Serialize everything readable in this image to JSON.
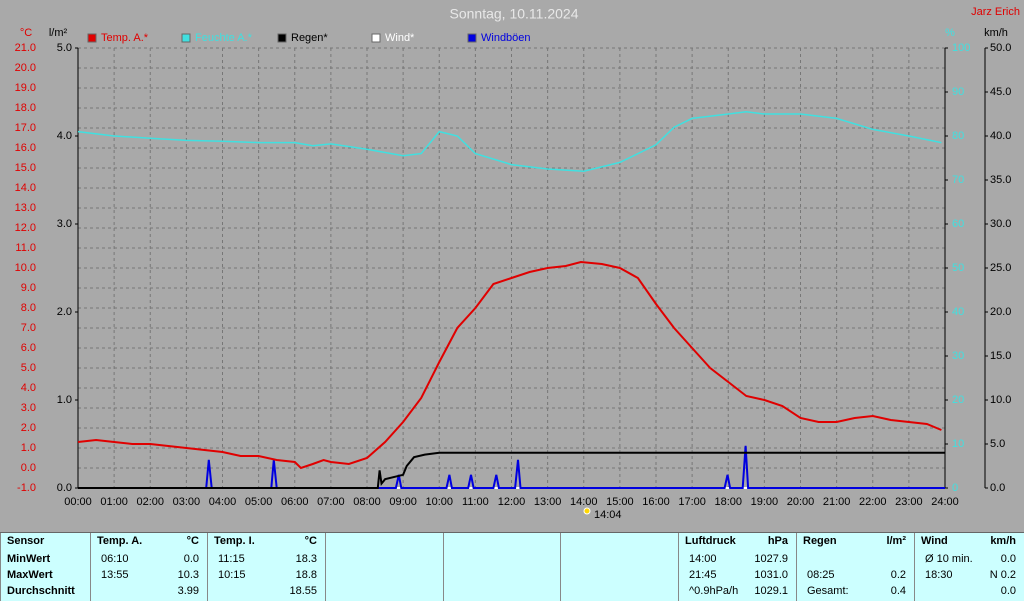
{
  "chart_data": {
    "type": "line",
    "title": "Sonntag, 10.11.2024",
    "author": "Jarz Erich",
    "sun_marker": "14:04",
    "xlim": [
      0,
      24
    ],
    "xticks": [
      {
        "value": 0,
        "label": "00:00"
      },
      {
        "value": 1,
        "label": "01:00"
      },
      {
        "value": 2,
        "label": "02:00"
      },
      {
        "value": 3,
        "label": "03:00"
      },
      {
        "value": 4,
        "label": "04:00"
      },
      {
        "value": 5,
        "label": "05:00"
      },
      {
        "value": 6,
        "label": "06:00"
      },
      {
        "value": 7,
        "label": "07:00"
      },
      {
        "value": 8,
        "label": "08:00"
      },
      {
        "value": 9,
        "label": "09:00"
      },
      {
        "value": 10,
        "label": "10:00"
      },
      {
        "value": 11,
        "label": "11:00"
      },
      {
        "value": 12,
        "label": "12:00"
      },
      {
        "value": 13,
        "label": "13:00"
      },
      {
        "value": 14,
        "label": "14:00"
      },
      {
        "value": 15,
        "label": "15:00"
      },
      {
        "value": 16,
        "label": "16:00"
      },
      {
        "value": 17,
        "label": "17:00"
      },
      {
        "value": 18,
        "label": "18:00"
      },
      {
        "value": 19,
        "label": "19:00"
      },
      {
        "value": 20,
        "label": "20:00"
      },
      {
        "value": 21,
        "label": "21:00"
      },
      {
        "value": 22,
        "label": "22:00"
      },
      {
        "value": 23,
        "label": "23:00"
      },
      {
        "value": 24,
        "label": "24:00"
      }
    ],
    "y_label": "°C",
    "ylim": [
      -1,
      21
    ],
    "yticks": [
      {
        "value": -1,
        "label": "-1.0"
      },
      {
        "value": 0,
        "label": "0.0"
      },
      {
        "value": 1,
        "label": "1.0"
      },
      {
        "value": 2,
        "label": "2.0"
      },
      {
        "value": 3,
        "label": "3.0"
      },
      {
        "value": 4,
        "label": "4.0"
      },
      {
        "value": 5,
        "label": "5.0"
      },
      {
        "value": 6,
        "label": "6.0"
      },
      {
        "value": 7,
        "label": "7.0"
      },
      {
        "value": 8,
        "label": "8.0"
      },
      {
        "value": 9,
        "label": "9.0"
      },
      {
        "value": 10,
        "label": "10.0"
      },
      {
        "value": 11,
        "label": "11.0"
      },
      {
        "value": 12,
        "label": "12.0"
      },
      {
        "value": 13,
        "label": "13.0"
      },
      {
        "value": 14,
        "label": "14.0"
      },
      {
        "value": 15,
        "label": "15.0"
      },
      {
        "value": 16,
        "label": "16.0"
      },
      {
        "value": 17,
        "label": "17.0"
      },
      {
        "value": 18,
        "label": "18.0"
      },
      {
        "value": 19,
        "label": "19.0"
      },
      {
        "value": 20,
        "label": "20.0"
      },
      {
        "value": 21,
        "label": "21.0"
      }
    ],
    "y2_label": "l/m²",
    "y2lim": [
      0,
      5
    ],
    "y2ticks": [
      {
        "value": 0,
        "label": "0.0"
      },
      {
        "value": 1,
        "label": "1.0"
      },
      {
        "value": 2,
        "label": "2.0"
      },
      {
        "value": 3,
        "label": "3.0"
      },
      {
        "value": 4,
        "label": "4.0"
      },
      {
        "value": 5,
        "label": "5.0"
      }
    ],
    "y3_label": "%",
    "y3lim": [
      0,
      100
    ],
    "y3ticks": [
      0,
      10,
      20,
      30,
      40,
      50,
      60,
      70,
      80,
      90,
      100
    ],
    "y4_label": "km/h",
    "y4lim": [
      0,
      50
    ],
    "y4ticks": [
      {
        "value": 0,
        "label": "0.0"
      },
      {
        "value": 5,
        "label": "5.0"
      },
      {
        "value": 10,
        "label": "10.0"
      },
      {
        "value": 15,
        "label": "15.0"
      },
      {
        "value": 20,
        "label": "20.0"
      },
      {
        "value": 25,
        "label": "25.0"
      },
      {
        "value": 30,
        "label": "30.0"
      },
      {
        "value": 35,
        "label": "35.0"
      },
      {
        "value": 40,
        "label": "40.0"
      },
      {
        "value": 45,
        "label": "45.0"
      },
      {
        "value": 50,
        "label": "50.0"
      }
    ],
    "grid": true,
    "series": [
      {
        "name": "Temp. A.*",
        "color": "#e00000",
        "axis": "y",
        "x": [
          0,
          0.5,
          1,
          1.5,
          2,
          2.5,
          3,
          3.5,
          4,
          4.5,
          5,
          5.5,
          6,
          6.17,
          6.5,
          6.8,
          7,
          7.5,
          8,
          8.5,
          9,
          9.5,
          10,
          10.5,
          11,
          11.5,
          12,
          12.5,
          13,
          13.5,
          13.92,
          14.5,
          15,
          15.5,
          16,
          16.5,
          17,
          17.5,
          18,
          18.5,
          19,
          19.5,
          20,
          20.5,
          21,
          21.5,
          22,
          22.5,
          23,
          23.5,
          23.9
        ],
        "values": [
          1.3,
          1.4,
          1.3,
          1.2,
          1.2,
          1.1,
          1.0,
          0.9,
          0.8,
          0.6,
          0.6,
          0.4,
          0.3,
          0.0,
          0.2,
          0.4,
          0.3,
          0.2,
          0.5,
          1.3,
          2.3,
          3.5,
          5.3,
          7.0,
          8.0,
          9.2,
          9.5,
          9.8,
          10.0,
          10.1,
          10.3,
          10.2,
          10.0,
          9.5,
          8.2,
          7.0,
          6.0,
          5.0,
          4.3,
          3.6,
          3.4,
          3.1,
          2.5,
          2.3,
          2.3,
          2.5,
          2.6,
          2.4,
          2.3,
          2.2,
          1.9
        ]
      },
      {
        "name": "Feuchte A.*",
        "color": "#40e0e0",
        "axis": "y3",
        "x": [
          0,
          1,
          2,
          3,
          4,
          5,
          6,
          6.5,
          7,
          8,
          9,
          9.5,
          10,
          10.5,
          11,
          12,
          13,
          14,
          15,
          16,
          16.5,
          17,
          18,
          18.5,
          19,
          20,
          21,
          22,
          23,
          23.9
        ],
        "values": [
          81,
          80,
          79.5,
          79,
          78.8,
          78.5,
          78.5,
          77.8,
          78.2,
          77,
          75.5,
          76,
          81,
          80,
          76,
          73.5,
          72.5,
          72,
          74,
          78,
          82,
          84,
          85,
          85.5,
          85,
          85,
          84,
          81.5,
          80,
          78.5
        ]
      },
      {
        "name": "Regen*",
        "color": "#000000",
        "axis": "y2",
        "x": [
          0,
          8.3,
          8.35,
          8.4,
          8.5,
          9.0,
          9.05,
          9.1,
          9.3,
          9.6,
          10,
          24
        ],
        "values": [
          0,
          0,
          0.2,
          0.05,
          0.1,
          0.15,
          0.2,
          0.25,
          0.35,
          0.38,
          0.4,
          0.4
        ]
      },
      {
        "name": "Wind*",
        "color": "#ffffff",
        "axis": "y4",
        "x": [
          0,
          24
        ],
        "values": [
          0,
          0
        ]
      },
      {
        "name": "Windböen",
        "color": "#0000e0",
        "axis": "y4",
        "x": [
          0,
          3.55,
          3.62,
          3.7,
          5.35,
          5.42,
          5.5,
          8.8,
          8.88,
          8.95,
          10.2,
          10.28,
          10.35,
          10.8,
          10.88,
          10.95,
          11.5,
          11.58,
          11.65,
          12.1,
          12.18,
          12.25,
          17.9,
          17.98,
          18.05,
          18.4,
          18.48,
          18.55,
          24
        ],
        "values": [
          0,
          0,
          3.2,
          0,
          0,
          3.2,
          0,
          0,
          1.5,
          0,
          0,
          1.5,
          0,
          0,
          1.5,
          0,
          0,
          1.5,
          0,
          0,
          3.2,
          0,
          0,
          1.5,
          0,
          0,
          4.8,
          0,
          0
        ]
      }
    ]
  },
  "table": {
    "panels": [
      {
        "header": "Sensor",
        "rows": [
          {
            "label": "MinWert"
          },
          {
            "label": "MaxWert"
          },
          {
            "label": "Durchschnitt"
          }
        ]
      },
      {
        "header": "Temp. A.",
        "unit": "°C",
        "rows": [
          {
            "time": "06:10",
            "value": "0.0"
          },
          {
            "time": "13:55",
            "value": "10.3"
          },
          {
            "value": "3.99"
          }
        ]
      },
      {
        "header": "Temp. I.",
        "unit": "°C",
        "rows": [
          {
            "time": "11:15",
            "value": "18.3"
          },
          {
            "time": "10:15",
            "value": "18.8"
          },
          {
            "value": "18.55"
          }
        ]
      },
      {
        "header": "Luftdruck",
        "unit": "hPa",
        "rows": [
          {
            "time": "14:00",
            "value": "1027.9"
          },
          {
            "time": "21:45",
            "value": "1031.0"
          },
          {
            "time": "^0.9hPa/h",
            "value": "1029.1"
          }
        ]
      },
      {
        "header": "Regen",
        "unit": "l/m²",
        "rows": [
          {},
          {
            "time": "08:25",
            "value": "0.2"
          },
          {
            "time": "Gesamt:",
            "value": "0.4"
          }
        ]
      },
      {
        "header": "Wind",
        "unit": "km/h",
        "rows": [
          {
            "time": "Ø 10 min.",
            "value": "0.0"
          },
          {
            "time": "18:30",
            "value": "N 0.2"
          },
          {
            "value": "0.0"
          }
        ]
      }
    ]
  }
}
